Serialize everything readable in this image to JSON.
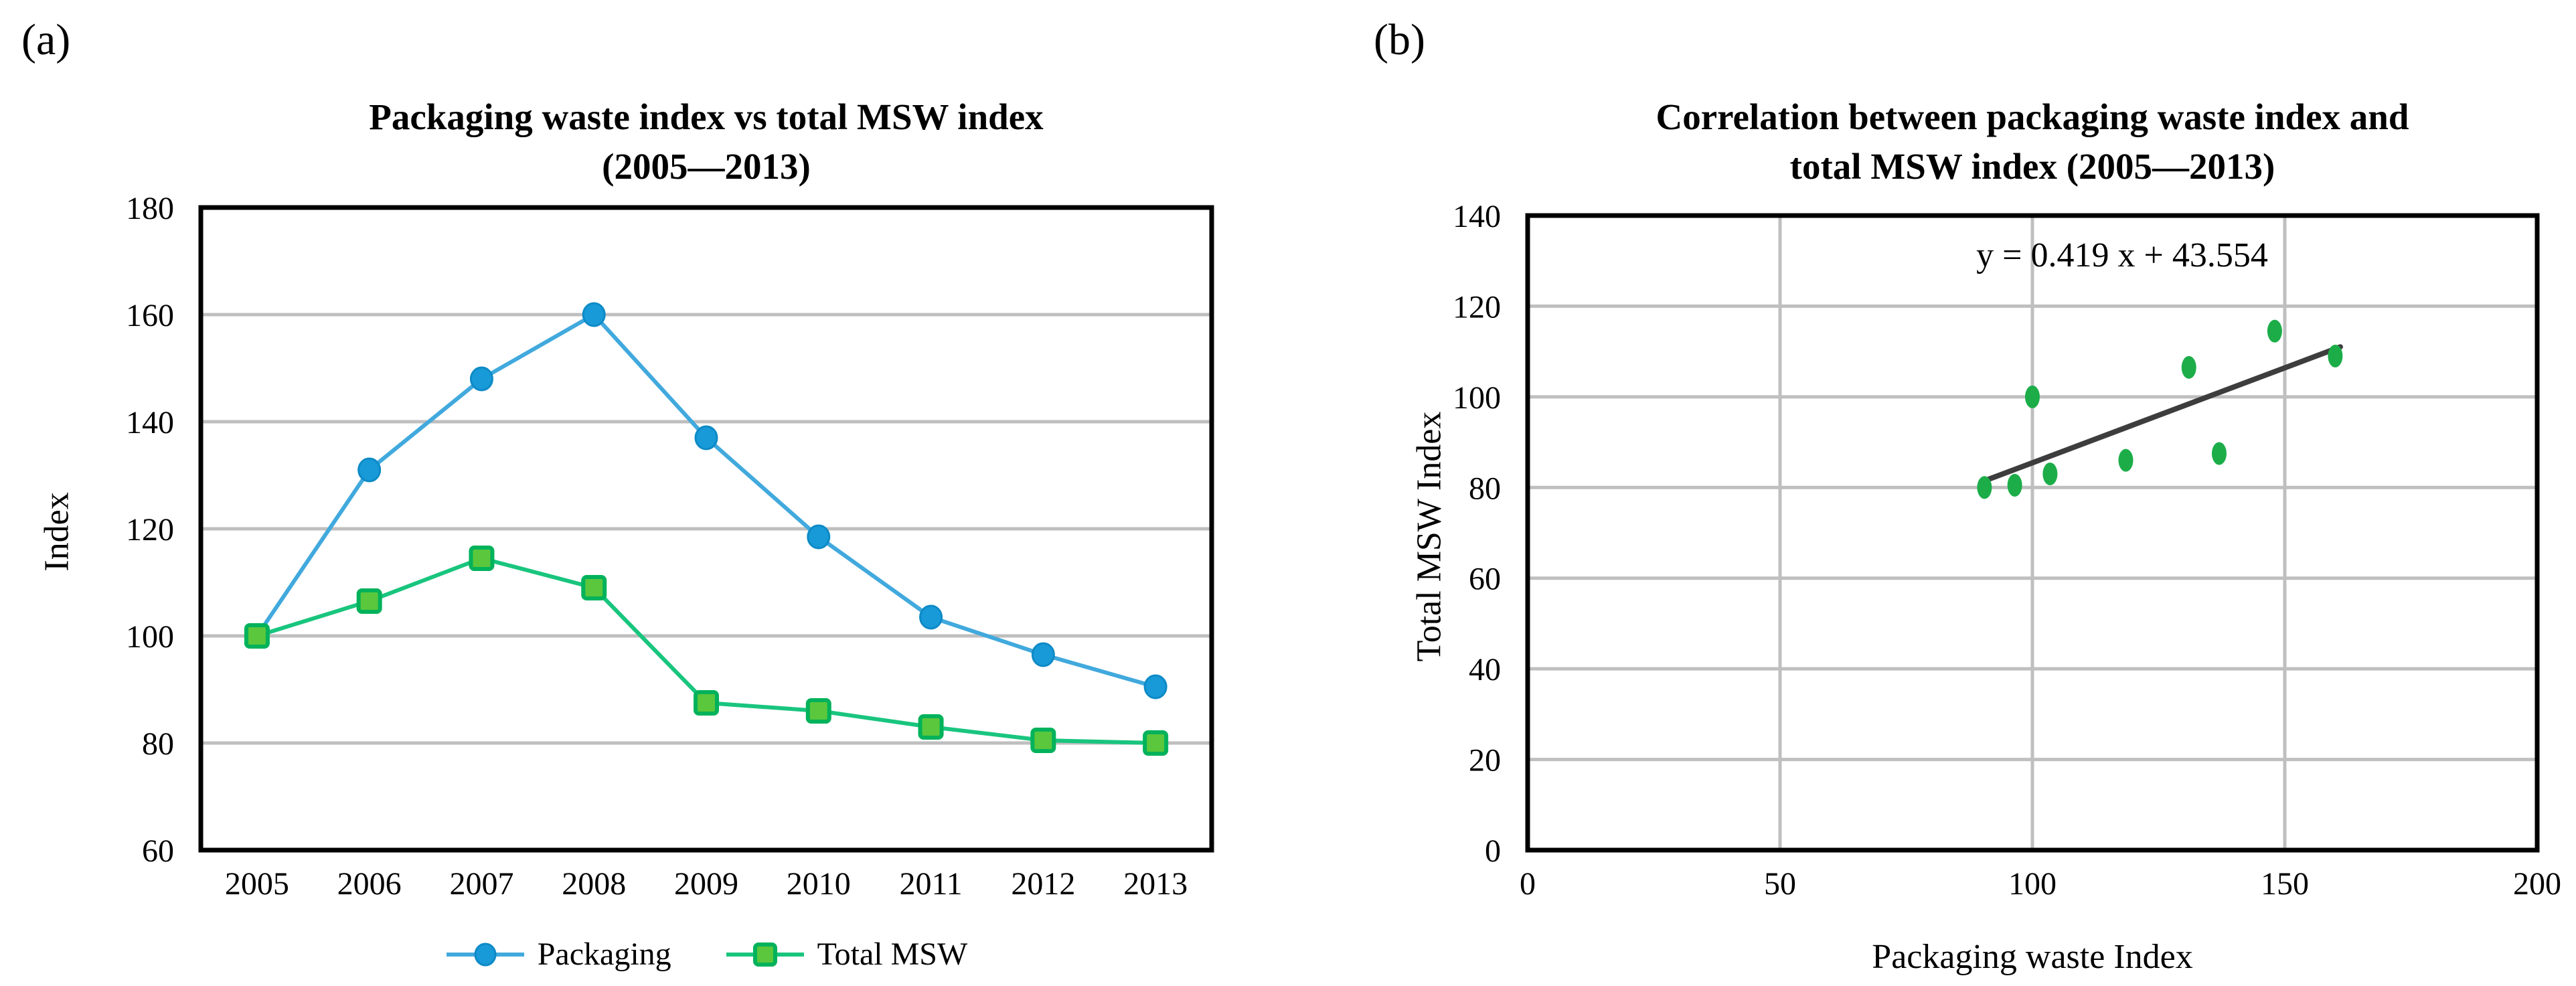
{
  "panels": {
    "a": {
      "tag": "(a)"
    },
    "b": {
      "tag": "(b)"
    }
  },
  "colors": {
    "grid": "#BFBFBF",
    "frame": "#000000",
    "text": "#000000"
  },
  "chart_data": [
    {
      "panel": "a",
      "type": "line",
      "title": "Packaging waste index vs total MSW index",
      "subtitle": "(2005—2013)",
      "ylabel": "Index",
      "categories": [
        "2005",
        "2006",
        "2007",
        "2008",
        "2009",
        "2010",
        "2011",
        "2012",
        "2013"
      ],
      "ylim": [
        60,
        180
      ],
      "yticks": [
        60,
        80,
        100,
        120,
        140,
        160,
        180
      ],
      "grid": "horizontal",
      "legend_position": "bottom",
      "series": [
        {
          "name": "Packaging",
          "marker": "circle",
          "line_color": "#41A9DD",
          "marker_fill": "#189AD8",
          "marker_stroke": "#0D8AC6",
          "values": [
            100,
            131,
            148,
            160,
            137,
            118.5,
            103.5,
            96.5,
            90.5
          ]
        },
        {
          "name": "Total MSW",
          "marker": "square",
          "line_color": "#19C57E",
          "marker_fill": "#5BC73C",
          "marker_stroke": "#00B25B",
          "values": [
            100,
            106.5,
            114.5,
            109,
            87.5,
            86,
            83,
            80.5,
            80
          ]
        }
      ]
    },
    {
      "panel": "b",
      "type": "scatter",
      "title": "Correlation between packaging waste index and",
      "subtitle": "total MSW index (2005—2013)",
      "xlabel": "Packaging waste Index",
      "ylabel": "Total MSW Index",
      "equation": "y = 0.419 x + 43.554",
      "xlim": [
        0,
        200
      ],
      "ylim": [
        0,
        140
      ],
      "xticks": [
        0,
        50,
        100,
        150,
        200
      ],
      "yticks": [
        0,
        20,
        40,
        60,
        80,
        100,
        120,
        140
      ],
      "grid": "both",
      "point_color": "#1CAD49",
      "trendline": {
        "slope": 0.419,
        "intercept": 43.554,
        "x_start": 91,
        "x_end": 161,
        "color": "#3D3D3D"
      },
      "points": [
        [
          100,
          100
        ],
        [
          131,
          106.5
        ],
        [
          148,
          114.5
        ],
        [
          160,
          109
        ],
        [
          137,
          87.5
        ],
        [
          118.5,
          86
        ],
        [
          103.5,
          83
        ],
        [
          96.5,
          80.5
        ],
        [
          90.5,
          80
        ]
      ]
    }
  ]
}
